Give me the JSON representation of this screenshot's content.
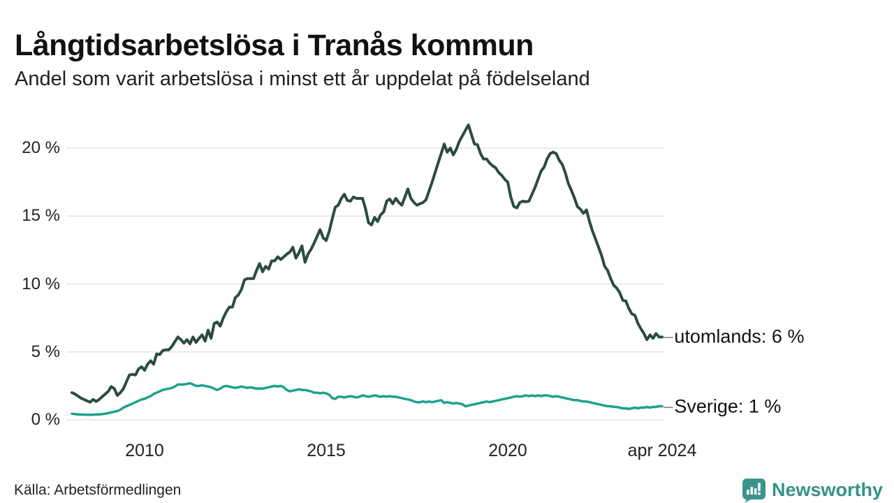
{
  "header": {
    "title": "Långtidsarbetslösa i Tranås kommun",
    "subtitle": "Andel som varit arbetslösa i minst ett år uppdelat på födelseland"
  },
  "footer": {
    "source": "Källa: Arbetsförmedlingen",
    "brand": "Newsworthy",
    "brand_color": "#35928A",
    "brand_icon_color": "#3B948B"
  },
  "annotations": {
    "dash_glyph": "–"
  },
  "chart_data": {
    "type": "line",
    "title": "Långtidsarbetslösa i Tranås kommun",
    "subtitle": "Andel som varit arbetslösa i minst ett år uppdelat på födelseland",
    "x_unit": "month",
    "x_start_year": 2008,
    "x_end_label_year": 2024.25,
    "xlim": [
      2008,
      2024.25
    ],
    "ylim": [
      0,
      22.5
    ],
    "grid": "horizontal",
    "grid_color": "#e3e3e3",
    "y_ticks": [
      0,
      5,
      10,
      15,
      20
    ],
    "y_tick_labels": [
      "0 %",
      "5 %",
      "10 %",
      "15 %",
      "20 %"
    ],
    "x_ticks": [
      {
        "label": "2010",
        "t": 2010
      },
      {
        "label": "2015",
        "t": 2015
      },
      {
        "label": "2020",
        "t": 2020
      },
      {
        "label": "apr 2024",
        "t": 2024.25
      }
    ],
    "legend_position": "right-end-labels",
    "series": [
      {
        "name": "utomlands",
        "label": "utomlands: 6 %",
        "end_value_label": "6 %",
        "color": "#2A4C3E",
        "stroke_width": 4,
        "values": [
          2.0,
          1.9,
          1.75,
          1.6,
          1.5,
          1.4,
          1.3,
          1.5,
          1.35,
          1.5,
          1.7,
          1.9,
          2.1,
          2.45,
          2.3,
          1.8,
          2.0,
          2.3,
          2.8,
          3.3,
          3.35,
          3.3,
          3.75,
          3.9,
          3.65,
          4.1,
          4.35,
          4.1,
          4.85,
          4.8,
          5.1,
          5.15,
          5.15,
          5.4,
          5.75,
          6.1,
          5.9,
          5.65,
          5.9,
          5.6,
          6.1,
          5.7,
          6.0,
          6.25,
          5.8,
          6.6,
          6.0,
          7.1,
          7.2,
          6.9,
          7.5,
          7.95,
          8.3,
          8.3,
          9.0,
          9.2,
          9.6,
          10.3,
          10.4,
          10.4,
          10.4,
          11.0,
          11.5,
          10.9,
          11.3,
          11.1,
          11.7,
          11.7,
          12.0,
          11.8,
          12.0,
          12.2,
          12.35,
          12.7,
          11.9,
          12.3,
          12.8,
          11.6,
          12.2,
          12.55,
          13.0,
          13.5,
          14.0,
          13.4,
          13.2,
          13.85,
          14.8,
          15.65,
          15.8,
          16.3,
          16.6,
          16.15,
          16.1,
          16.4,
          16.3,
          16.3,
          16.3,
          15.55,
          14.5,
          14.35,
          14.9,
          14.6,
          15.1,
          15.3,
          16.1,
          16.25,
          15.9,
          16.3,
          16.0,
          15.8,
          16.4,
          17.0,
          16.3,
          16.0,
          15.8,
          15.9,
          16.0,
          16.2,
          16.85,
          17.5,
          18.2,
          18.9,
          19.6,
          20.3,
          19.7,
          20.0,
          19.5,
          19.9,
          20.5,
          20.9,
          21.3,
          21.7,
          21.0,
          20.3,
          20.25,
          19.6,
          19.2,
          19.2,
          18.9,
          18.7,
          18.55,
          18.2,
          18.0,
          17.7,
          17.5,
          16.4,
          15.7,
          15.6,
          16.0,
          16.1,
          16.05,
          16.1,
          16.6,
          17.1,
          17.7,
          18.3,
          18.6,
          19.2,
          19.6,
          19.7,
          19.6,
          19.1,
          18.8,
          18.2,
          17.4,
          16.9,
          16.35,
          15.7,
          15.5,
          15.2,
          15.45,
          14.6,
          13.9,
          13.3,
          12.7,
          12.1,
          11.3,
          11.0,
          10.4,
          9.9,
          9.7,
          9.35,
          8.8,
          8.75,
          8.2,
          7.8,
          7.7,
          7.1,
          6.7,
          6.35,
          5.9,
          6.25,
          6.0,
          6.35,
          6.1,
          6.1
        ]
      },
      {
        "name": "Sverige",
        "label": "Sverige: 1 %",
        "end_value_label": "1 %",
        "color": "#1CA28E",
        "stroke_width": 3.5,
        "values": [
          0.45,
          0.42,
          0.4,
          0.4,
          0.38,
          0.38,
          0.37,
          0.38,
          0.4,
          0.4,
          0.42,
          0.45,
          0.5,
          0.55,
          0.6,
          0.65,
          0.75,
          0.9,
          1.0,
          1.1,
          1.2,
          1.3,
          1.4,
          1.5,
          1.55,
          1.65,
          1.75,
          1.9,
          2.0,
          2.1,
          2.2,
          2.25,
          2.3,
          2.35,
          2.45,
          2.6,
          2.6,
          2.6,
          2.65,
          2.7,
          2.6,
          2.5,
          2.5,
          2.55,
          2.5,
          2.45,
          2.4,
          2.3,
          2.2,
          2.3,
          2.45,
          2.5,
          2.45,
          2.4,
          2.35,
          2.4,
          2.45,
          2.4,
          2.35,
          2.4,
          2.35,
          2.3,
          2.3,
          2.3,
          2.35,
          2.4,
          2.45,
          2.5,
          2.45,
          2.5,
          2.4,
          2.2,
          2.1,
          2.15,
          2.2,
          2.25,
          2.2,
          2.2,
          2.15,
          2.1,
          2.0,
          2.0,
          1.95,
          2.0,
          1.95,
          1.85,
          1.6,
          1.55,
          1.7,
          1.7,
          1.65,
          1.7,
          1.75,
          1.7,
          1.65,
          1.7,
          1.8,
          1.75,
          1.7,
          1.75,
          1.8,
          1.75,
          1.7,
          1.75,
          1.7,
          1.75,
          1.7,
          1.7,
          1.65,
          1.6,
          1.55,
          1.5,
          1.45,
          1.35,
          1.3,
          1.3,
          1.35,
          1.3,
          1.35,
          1.3,
          1.35,
          1.4,
          1.45,
          1.25,
          1.3,
          1.25,
          1.2,
          1.25,
          1.2,
          1.15,
          1.0,
          1.05,
          1.1,
          1.15,
          1.2,
          1.25,
          1.3,
          1.35,
          1.3,
          1.35,
          1.4,
          1.45,
          1.5,
          1.55,
          1.6,
          1.65,
          1.7,
          1.75,
          1.7,
          1.75,
          1.8,
          1.75,
          1.8,
          1.75,
          1.8,
          1.75,
          1.8,
          1.8,
          1.75,
          1.7,
          1.75,
          1.7,
          1.65,
          1.6,
          1.55,
          1.5,
          1.45,
          1.45,
          1.4,
          1.35,
          1.35,
          1.3,
          1.25,
          1.2,
          1.15,
          1.1,
          1.05,
          1.0,
          1.0,
          0.95,
          0.95,
          0.9,
          0.85,
          0.85,
          0.8,
          0.85,
          0.9,
          0.85,
          0.9,
          0.9,
          0.95,
          0.9,
          0.95,
          0.95,
          1.0,
          1.0
        ]
      }
    ]
  }
}
